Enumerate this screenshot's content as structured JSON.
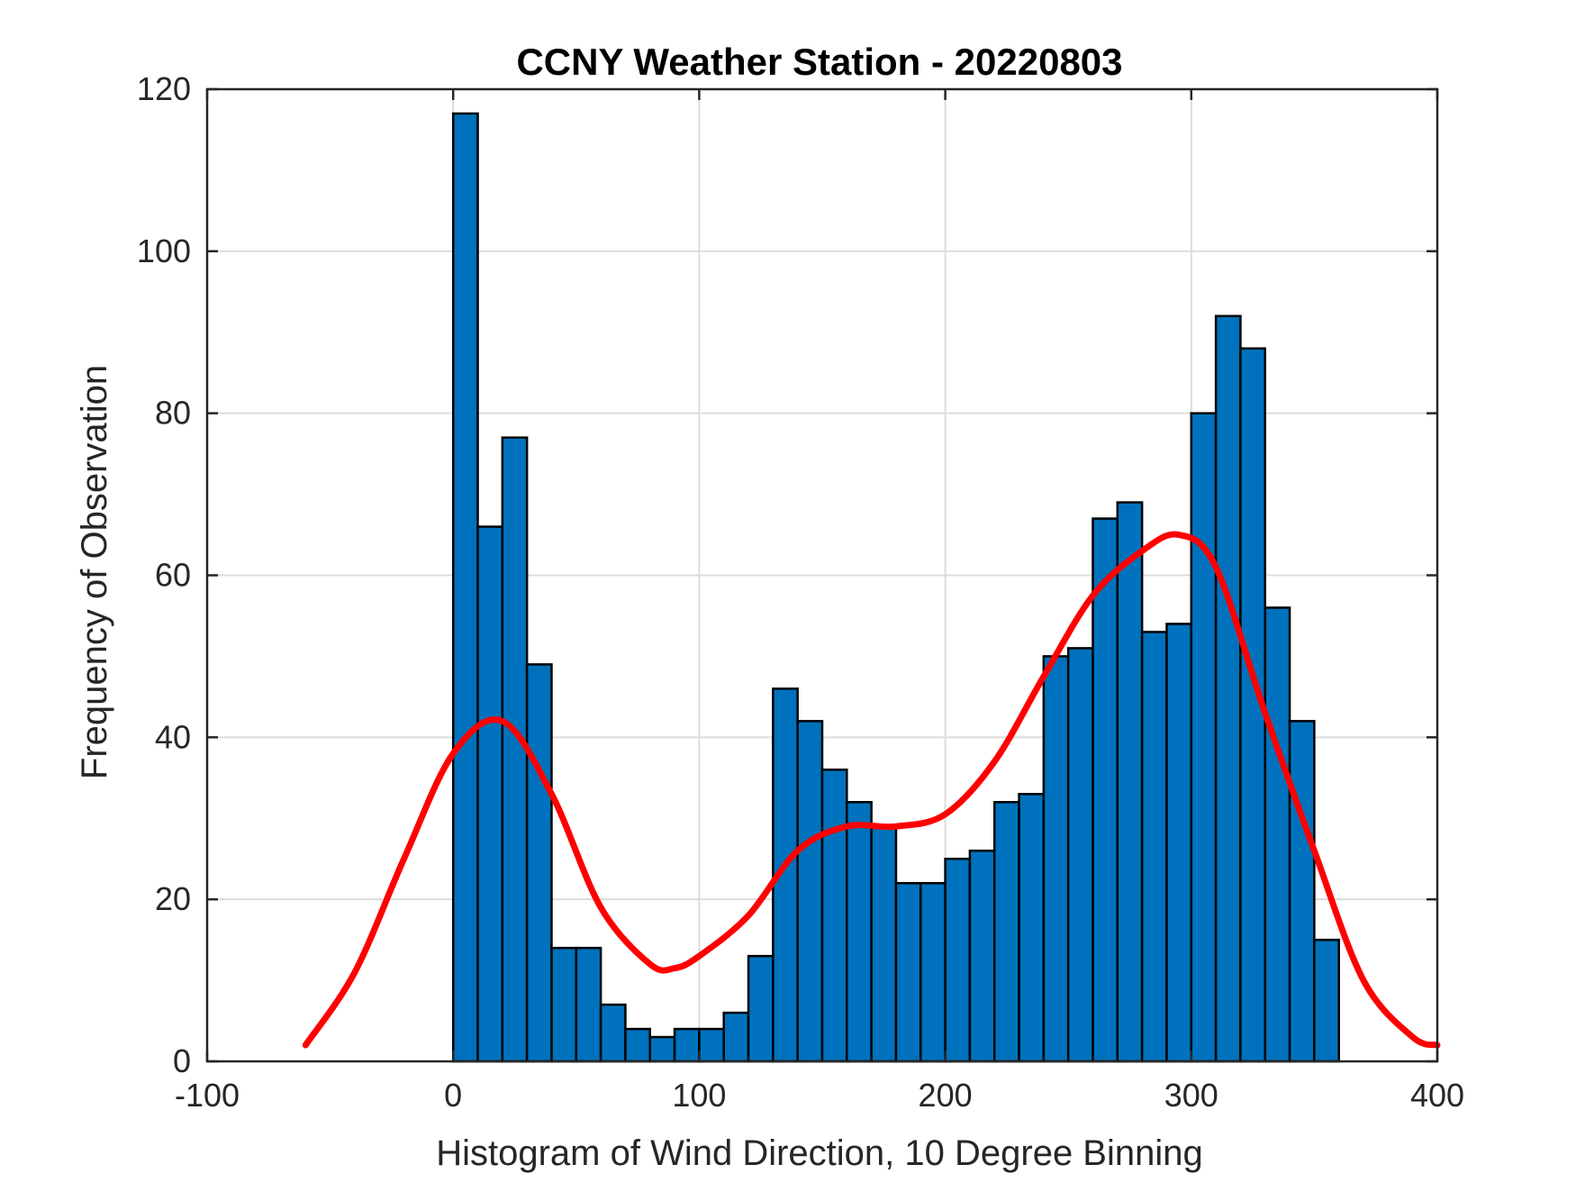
{
  "colors": {
    "bar_fill": "#0072BD",
    "fit_line": "#FF0000"
  },
  "chart_data": {
    "type": "bar",
    "title": "CCNY Weather Station - 20220803",
    "xlabel": "Histogram of Wind Direction, 10 Degree Binning",
    "ylabel": "Frequency of Observation",
    "xlim": [
      -100,
      400
    ],
    "ylim": [
      0,
      120
    ],
    "grid": true,
    "xticks": [
      -100,
      0,
      100,
      200,
      300,
      400
    ],
    "xtick_labels": [
      "-100",
      "0",
      "100",
      "200",
      "300",
      "400"
    ],
    "yticks": [
      0,
      20,
      40,
      60,
      80,
      100,
      120
    ],
    "ytick_labels": [
      "0",
      "20",
      "40",
      "60",
      "80",
      "100",
      "120"
    ],
    "bin_width": 10,
    "bin_edges_start": 0,
    "series": [
      {
        "name": "Histogram",
        "type": "bar",
        "values": [
          117,
          66,
          77,
          49,
          14,
          14,
          7,
          4,
          3,
          4,
          4,
          6,
          13,
          46,
          42,
          36,
          32,
          29,
          22,
          22,
          25,
          26,
          32,
          33,
          50,
          51,
          67,
          69,
          53,
          54,
          80,
          92,
          88,
          56,
          42,
          15
        ]
      },
      {
        "name": "Fit",
        "type": "line",
        "x": [
          -60,
          -40,
          -20,
          0,
          20,
          40,
          60,
          80,
          90,
          100,
          120,
          140,
          160,
          180,
          200,
          220,
          240,
          260,
          280,
          295,
          310,
          330,
          350,
          370,
          390,
          400
        ],
        "y": [
          2,
          11,
          25,
          38,
          42,
          33,
          19,
          12,
          11.5,
          13,
          18,
          26,
          29,
          29,
          30.5,
          37,
          47.5,
          57.5,
          63,
          65,
          61,
          43,
          26,
          10,
          3,
          2
        ]
      }
    ]
  }
}
